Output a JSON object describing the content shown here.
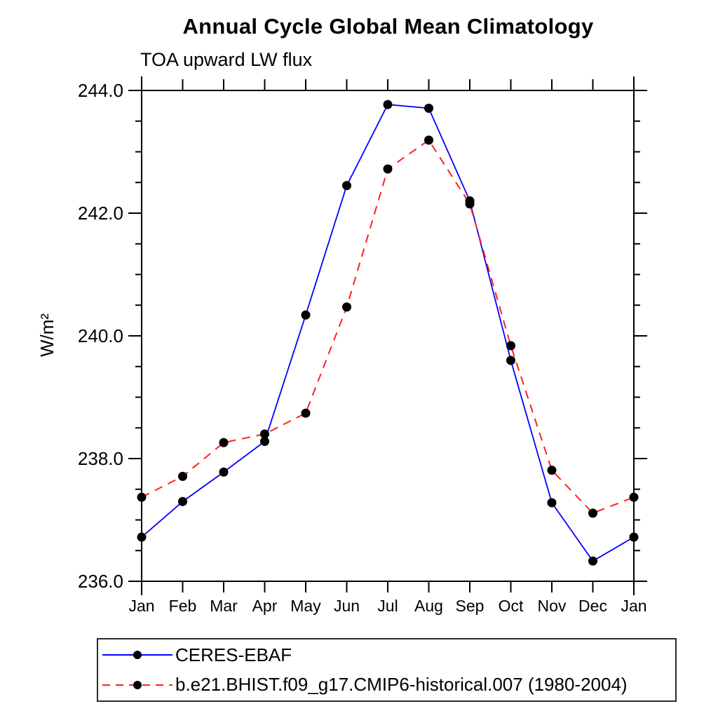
{
  "title": "Annual Cycle Global Mean Climatology",
  "subtitle": "TOA upward LW flux",
  "chart_data": {
    "type": "line",
    "title": "Annual Cycle Global Mean Climatology",
    "subtitle": "TOA upward LW flux",
    "ylabel": "W/m²",
    "xlabel": "",
    "categories": [
      "Jan",
      "Feb",
      "Mar",
      "Apr",
      "May",
      "Jun",
      "Jul",
      "Aug",
      "Sep",
      "Oct",
      "Nov",
      "Dec",
      "Jan"
    ],
    "series": [
      {
        "name": "CERES-EBAF",
        "color": "#0000ff",
        "line_style": "solid",
        "marker": "filled-circle",
        "marker_color": "#000000",
        "values": [
          236.72,
          237.3,
          237.78,
          238.28,
          240.34,
          242.45,
          243.77,
          243.71,
          242.2,
          239.6,
          237.28,
          236.33,
          236.72
        ]
      },
      {
        "name": "b.e21.BHIST.f09_g17.CMIP6-historical.007 (1980-2004)",
        "color": "#ff2020",
        "line_style": "dashed",
        "marker": "filled-circle",
        "marker_color": "#000000",
        "values": [
          237.37,
          237.71,
          238.26,
          238.4,
          238.74,
          240.47,
          242.72,
          243.19,
          242.15,
          239.84,
          237.81,
          237.11,
          237.37
        ]
      }
    ],
    "ylim": [
      236.0,
      244.0
    ],
    "yticks_major": {
      "values": [
        236,
        238,
        240,
        242,
        244
      ],
      "labels": [
        "236.0",
        "238.0",
        "240.0",
        "242.0",
        "244.0"
      ]
    },
    "ytick_minor_step": 0.5,
    "grid": false,
    "legend_position": "bottom-left",
    "axis_color": "#000000",
    "background": "#ffffff"
  }
}
